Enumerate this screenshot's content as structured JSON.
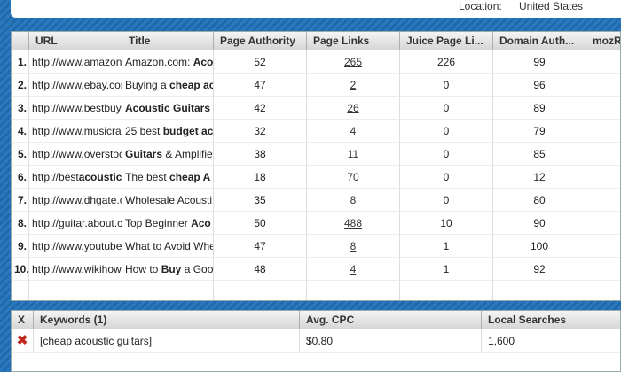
{
  "location": {
    "label": "Location:",
    "value": "United States"
  },
  "table": {
    "columns": [
      "URL",
      "Title",
      "Page Authority",
      "Page Links",
      "Juice Page Li...",
      "Domain Auth...",
      "mozR"
    ],
    "rows": [
      {
        "n": "1.",
        "url": [
          {
            "text": "http://www.amazon."
          }
        ],
        "title": [
          {
            "text": "Amazon.com: "
          },
          {
            "text": "Aco",
            "bold": true
          }
        ],
        "page_authority": 52,
        "page_links": 265,
        "juice_links": 226,
        "domain_authority": 99
      },
      {
        "n": "2.",
        "url": [
          {
            "text": "http://www.ebay.con"
          }
        ],
        "title": [
          {
            "text": "Buying a "
          },
          {
            "text": "cheap ac",
            "bold": true
          }
        ],
        "page_authority": 47,
        "page_links": 2,
        "juice_links": 0,
        "domain_authority": 96
      },
      {
        "n": "3.",
        "url": [
          {
            "text": "http://www.bestbuy."
          }
        ],
        "title": [
          {
            "text": "Acoustic Guitars",
            "bold": true
          }
        ],
        "page_authority": 42,
        "page_links": 26,
        "juice_links": 0,
        "domain_authority": 89
      },
      {
        "n": "4.",
        "url": [
          {
            "text": "http://www.musicrac"
          }
        ],
        "title": [
          {
            "text": "25 best "
          },
          {
            "text": "budget ac",
            "bold": true
          }
        ],
        "page_authority": 32,
        "page_links": 4,
        "juice_links": 0,
        "domain_authority": 79
      },
      {
        "n": "5.",
        "url": [
          {
            "text": "http://www.overstoc"
          }
        ],
        "title": [
          {
            "text": "Guitars",
            "bold": true
          },
          {
            "text": " & Amplifie"
          }
        ],
        "page_authority": 38,
        "page_links": 11,
        "juice_links": 0,
        "domain_authority": 85
      },
      {
        "n": "6.",
        "url": [
          {
            "text": "http://best"
          },
          {
            "text": "acoustic",
            "bold": true
          },
          {
            "text": "g"
          }
        ],
        "title": [
          {
            "text": "The best "
          },
          {
            "text": "cheap A",
            "bold": true
          }
        ],
        "page_authority": 18,
        "page_links": 70,
        "juice_links": 0,
        "domain_authority": 12
      },
      {
        "n": "7.",
        "url": [
          {
            "text": "http://www.dhgate.c"
          }
        ],
        "title": [
          {
            "text": "Wholesale Acousti"
          }
        ],
        "page_authority": 35,
        "page_links": 8,
        "juice_links": 0,
        "domain_authority": 80
      },
      {
        "n": "8.",
        "url": [
          {
            "text": "http://guitar.about.cc"
          }
        ],
        "title": [
          {
            "text": "Top Beginner "
          },
          {
            "text": "Aco",
            "bold": true
          }
        ],
        "page_authority": 50,
        "page_links": 488,
        "juice_links": 10,
        "domain_authority": 90
      },
      {
        "n": "9.",
        "url": [
          {
            "text": "http://www.youtube."
          }
        ],
        "title": [
          {
            "text": "What to Avoid Whe"
          }
        ],
        "page_authority": 47,
        "page_links": 8,
        "juice_links": 1,
        "domain_authority": 100
      },
      {
        "n": "10.",
        "url": [
          {
            "text": "http://www.wikihow."
          }
        ],
        "title": [
          {
            "text": "How to "
          },
          {
            "text": "Buy",
            "bold": true
          },
          {
            "text": " a Goo"
          }
        ],
        "page_authority": 48,
        "page_links": 4,
        "juice_links": 1,
        "domain_authority": 92
      }
    ]
  },
  "keywords": {
    "columns": [
      "X",
      "Keywords (1)",
      "Avg. CPC",
      "Local Searches"
    ],
    "rows": [
      {
        "keyword": "[cheap acoustic guitars]",
        "cpc": "$0.80",
        "searches": "1,600"
      }
    ]
  }
}
